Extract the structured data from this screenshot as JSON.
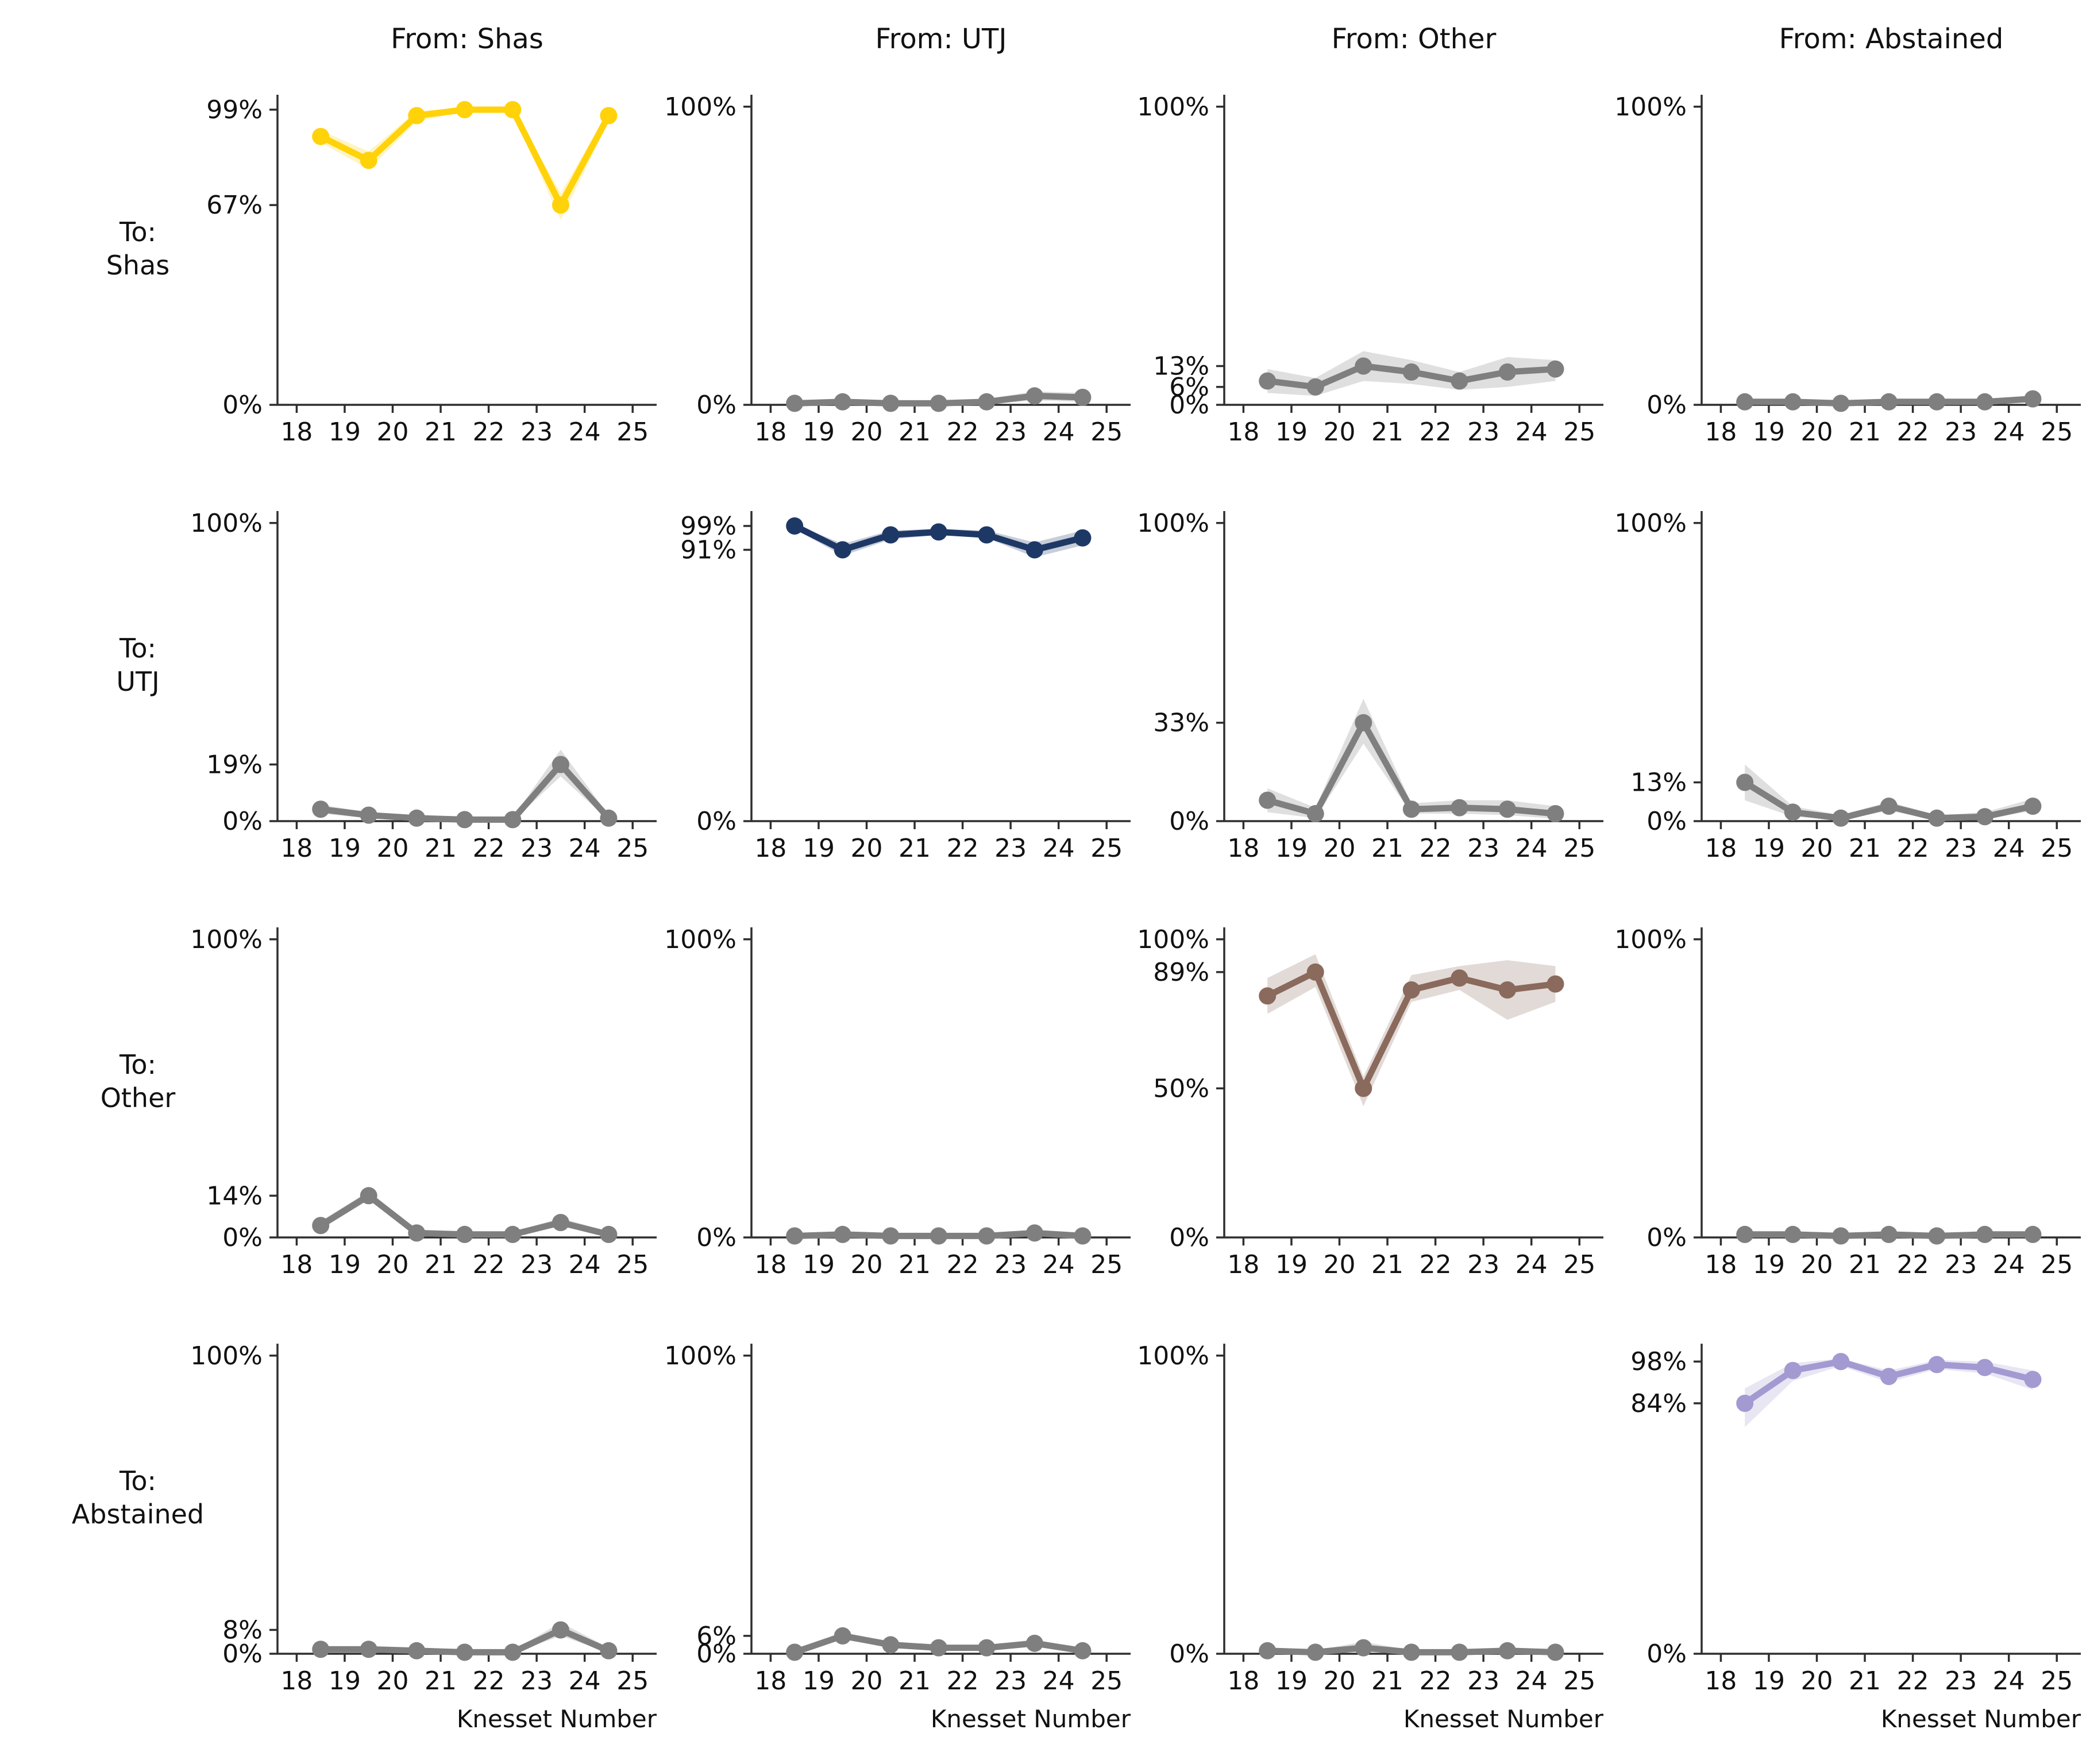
{
  "figure": {
    "xlabel": "Knesset Number",
    "x_tick_labels": [
      "18",
      "19",
      "20",
      "21",
      "22",
      "23",
      "24",
      "25"
    ],
    "column_titles": [
      "From: Shas",
      "From: UTJ",
      "From: Other",
      "From: Abstained"
    ],
    "row_labels": [
      [
        "To:",
        "Shas"
      ],
      [
        "To:",
        "UTJ"
      ],
      [
        "To:",
        "Other"
      ],
      [
        "To:",
        "Abstained"
      ]
    ],
    "xlim": [
      17.6,
      25.5
    ],
    "ylim": [
      0,
      104
    ],
    "grid": "off",
    "legend": "none"
  },
  "colors": {
    "shas": "#FFD20A",
    "utj": "#1E3866",
    "other": "#8A6A5C",
    "abstained": "#A29AD1",
    "offdiagonal": "#7F7F7F",
    "axis": "#2E2E2E",
    "text": "#111111",
    "band_opacity": 0.25
  },
  "chart_data": [
    {
      "type": "line",
      "to": "Shas",
      "from": "Shas",
      "color_key": "shas",
      "x": [
        18.5,
        19.5,
        20.5,
        21.5,
        22.5,
        23.5,
        24.5
      ],
      "values": [
        90,
        82,
        97,
        99,
        99,
        67,
        97
      ],
      "band_upper": [
        92,
        85,
        98.5,
        99.5,
        99.5,
        71,
        98.5
      ],
      "band_lower": [
        88,
        79,
        95,
        98.5,
        98,
        62,
        95
      ],
      "y_ticks": [
        {
          "v": 99,
          "label": "99%"
        },
        {
          "v": 67,
          "label": "67%"
        },
        {
          "v": 0,
          "label": "0%"
        }
      ]
    },
    {
      "type": "line",
      "to": "Shas",
      "from": "UTJ",
      "color_key": "offdiagonal",
      "x": [
        18.5,
        19.5,
        20.5,
        21.5,
        22.5,
        23.5,
        24.5
      ],
      "values": [
        0.5,
        1,
        0.5,
        0.5,
        1,
        3,
        2.5
      ],
      "band_upper": [
        1.5,
        2,
        1.5,
        1.5,
        2,
        4.5,
        4
      ],
      "band_lower": [
        0,
        0.2,
        0,
        0,
        0.2,
        1.5,
        1
      ],
      "y_ticks": [
        {
          "v": 100,
          "label": "100%"
        },
        {
          "v": 0,
          "label": "0%"
        }
      ]
    },
    {
      "type": "line",
      "to": "Shas",
      "from": "Other",
      "color_key": "offdiagonal",
      "x": [
        18.5,
        19.5,
        20.5,
        21.5,
        22.5,
        23.5,
        24.5
      ],
      "values": [
        8,
        6,
        13,
        11,
        8,
        11,
        12
      ],
      "band_upper": [
        12,
        9,
        18,
        15,
        11,
        16,
        15
      ],
      "band_lower": [
        4,
        3,
        8,
        7,
        5,
        6,
        8
      ],
      "y_ticks": [
        {
          "v": 100,
          "label": "100%"
        },
        {
          "v": 13,
          "label": "13%"
        },
        {
          "v": 6,
          "label": "6%"
        },
        {
          "v": 0,
          "label": "0%"
        }
      ]
    },
    {
      "type": "line",
      "to": "Shas",
      "from": "Abstained",
      "color_key": "offdiagonal",
      "x": [
        18.5,
        19.5,
        20.5,
        21.5,
        22.5,
        23.5,
        24.5
      ],
      "values": [
        1,
        1,
        0.5,
        1,
        1,
        1,
        2
      ],
      "band_upper": [
        2,
        2,
        1.2,
        1.8,
        1.8,
        2,
        3.2
      ],
      "band_lower": [
        0.3,
        0.3,
        0,
        0.3,
        0.3,
        0.3,
        0.9
      ],
      "y_ticks": [
        {
          "v": 100,
          "label": "100%"
        },
        {
          "v": 0,
          "label": "0%"
        }
      ]
    },
    {
      "type": "line",
      "to": "UTJ",
      "from": "Shas",
      "color_key": "offdiagonal",
      "x": [
        18.5,
        19.5,
        20.5,
        21.5,
        22.5,
        23.5,
        24.5
      ],
      "values": [
        4,
        2,
        1,
        0.5,
        0.5,
        19,
        1
      ],
      "band_upper": [
        5.5,
        3,
        1.8,
        1.2,
        1.2,
        24,
        2
      ],
      "band_lower": [
        2.5,
        1,
        0.3,
        0,
        0,
        15,
        0.3
      ],
      "y_ticks": [
        {
          "v": 100,
          "label": "100%"
        },
        {
          "v": 19,
          "label": "19%"
        },
        {
          "v": 0,
          "label": "0%"
        }
      ]
    },
    {
      "type": "line",
      "to": "UTJ",
      "from": "UTJ",
      "color_key": "utj",
      "x": [
        18.5,
        19.5,
        20.5,
        21.5,
        22.5,
        23.5,
        24.5
      ],
      "values": [
        99,
        91,
        96,
        97,
        96,
        91,
        95
      ],
      "band_upper": [
        99.6,
        93,
        97.5,
        98,
        97.5,
        93.5,
        97.5
      ],
      "band_lower": [
        98,
        89,
        94.5,
        96,
        95,
        88.5,
        92.5
      ],
      "y_ticks": [
        {
          "v": 99,
          "label": "99%"
        },
        {
          "v": 91,
          "label": "91%"
        },
        {
          "v": 0,
          "label": "0%"
        }
      ]
    },
    {
      "type": "line",
      "to": "UTJ",
      "from": "Other",
      "color_key": "offdiagonal",
      "x": [
        18.5,
        19.5,
        20.5,
        21.5,
        22.5,
        23.5,
        24.5
      ],
      "values": [
        7,
        2.5,
        33,
        4,
        4.5,
        4,
        2.5
      ],
      "band_upper": [
        11,
        4.5,
        41,
        6,
        7,
        7,
        5
      ],
      "band_lower": [
        3,
        1,
        26,
        2.5,
        2.5,
        2,
        0.8
      ],
      "y_ticks": [
        {
          "v": 100,
          "label": "100%"
        },
        {
          "v": 33,
          "label": "33%"
        },
        {
          "v": 0,
          "label": "0%"
        }
      ]
    },
    {
      "type": "line",
      "to": "UTJ",
      "from": "Abstained",
      "color_key": "offdiagonal",
      "x": [
        18.5,
        19.5,
        20.5,
        21.5,
        22.5,
        23.5,
        24.5
      ],
      "values": [
        13,
        3,
        1,
        5,
        1,
        1.5,
        5
      ],
      "band_upper": [
        19,
        5,
        2,
        6.5,
        2,
        3,
        7.5
      ],
      "band_lower": [
        7,
        1.5,
        0.3,
        3.5,
        0.3,
        0.5,
        3.5
      ],
      "y_ticks": [
        {
          "v": 100,
          "label": "100%"
        },
        {
          "v": 13,
          "label": "13%"
        },
        {
          "v": 0,
          "label": "0%"
        }
      ]
    },
    {
      "type": "line",
      "to": "Other",
      "from": "Shas",
      "color_key": "offdiagonal",
      "x": [
        18.5,
        19.5,
        20.5,
        21.5,
        22.5,
        23.5,
        24.5
      ],
      "values": [
        4,
        14,
        1.5,
        1,
        1,
        5,
        1
      ],
      "band_upper": [
        5.5,
        15.5,
        2.5,
        1.8,
        1.8,
        6.5,
        2
      ],
      "band_lower": [
        2.8,
        12.5,
        0.6,
        0.3,
        0.3,
        3.8,
        0.4
      ],
      "y_ticks": [
        {
          "v": 100,
          "label": "100%"
        },
        {
          "v": 14,
          "label": "14%"
        },
        {
          "v": 0,
          "label": "0%"
        }
      ]
    },
    {
      "type": "line",
      "to": "Other",
      "from": "UTJ",
      "color_key": "offdiagonal",
      "x": [
        18.5,
        19.5,
        20.5,
        21.5,
        22.5,
        23.5,
        24.5
      ],
      "values": [
        0.5,
        1,
        0.5,
        0.5,
        0.5,
        1.5,
        0.5
      ],
      "band_upper": [
        1.2,
        1.8,
        1.2,
        1.2,
        1.2,
        2.5,
        1.2
      ],
      "band_lower": [
        0,
        0.3,
        0,
        0,
        0,
        0.6,
        0
      ],
      "y_ticks": [
        {
          "v": 100,
          "label": "100%"
        },
        {
          "v": 0,
          "label": "0%"
        }
      ]
    },
    {
      "type": "line",
      "to": "Other",
      "from": "Other",
      "color_key": "other",
      "x": [
        18.5,
        19.5,
        20.5,
        21.5,
        22.5,
        23.5,
        24.5
      ],
      "values": [
        81,
        89,
        50,
        83,
        87,
        83,
        85
      ],
      "band_upper": [
        87,
        95,
        54,
        88,
        91,
        93,
        91
      ],
      "band_lower": [
        75,
        84,
        44,
        79,
        83,
        73,
        79
      ],
      "y_ticks": [
        {
          "v": 100,
          "label": "100%"
        },
        {
          "v": 89,
          "label": "89%"
        },
        {
          "v": 50,
          "label": "50%"
        },
        {
          "v": 0,
          "label": "0%"
        }
      ]
    },
    {
      "type": "line",
      "to": "Other",
      "from": "Abstained",
      "color_key": "offdiagonal",
      "x": [
        18.5,
        19.5,
        20.5,
        21.5,
        22.5,
        23.5,
        24.5
      ],
      "values": [
        1,
        1,
        0.5,
        1,
        0.5,
        1,
        1
      ],
      "band_upper": [
        1.8,
        1.8,
        1.1,
        1.8,
        1.1,
        1.8,
        1.8
      ],
      "band_lower": [
        0.3,
        0.3,
        0,
        0.3,
        0,
        0.3,
        0.3
      ],
      "y_ticks": [
        {
          "v": 100,
          "label": "100%"
        },
        {
          "v": 0,
          "label": "0%"
        }
      ]
    },
    {
      "type": "line",
      "to": "Abstained",
      "from": "Shas",
      "color_key": "offdiagonal",
      "x": [
        18.5,
        19.5,
        20.5,
        21.5,
        22.5,
        23.5,
        24.5
      ],
      "values": [
        1.5,
        1.5,
        1,
        0.5,
        0.5,
        8,
        1
      ],
      "band_upper": [
        2.3,
        2.3,
        1.8,
        1,
        1,
        10.5,
        2
      ],
      "band_lower": [
        0.8,
        0.8,
        0.4,
        0.1,
        0.1,
        6,
        0.4
      ],
      "y_ticks": [
        {
          "v": 100,
          "label": "100%"
        },
        {
          "v": 8,
          "label": "8%"
        },
        {
          "v": 0,
          "label": "0%"
        }
      ]
    },
    {
      "type": "line",
      "to": "Abstained",
      "from": "UTJ",
      "color_key": "offdiagonal",
      "x": [
        18.5,
        19.5,
        20.5,
        21.5,
        22.5,
        23.5,
        24.5
      ],
      "values": [
        0.5,
        6,
        3,
        2,
        2,
        3.5,
        1
      ],
      "band_upper": [
        1.2,
        7.2,
        4.2,
        2.8,
        2.8,
        4.8,
        1.8
      ],
      "band_lower": [
        0,
        4.8,
        2.2,
        1.3,
        1.3,
        2.5,
        0.4
      ],
      "y_ticks": [
        {
          "v": 100,
          "label": "100%"
        },
        {
          "v": 6,
          "label": "6%"
        },
        {
          "v": 0,
          "label": "0%"
        }
      ]
    },
    {
      "type": "line",
      "to": "Abstained",
      "from": "Other",
      "color_key": "offdiagonal",
      "x": [
        18.5,
        19.5,
        20.5,
        21.5,
        22.5,
        23.5,
        24.5
      ],
      "values": [
        1,
        0.5,
        2,
        0.5,
        0.5,
        1,
        0.5
      ],
      "band_upper": [
        1.8,
        1.2,
        4,
        1.2,
        1.2,
        2.2,
        1
      ],
      "band_lower": [
        0.4,
        0,
        0.7,
        0,
        0,
        0.3,
        0
      ],
      "y_ticks": [
        {
          "v": 100,
          "label": "100%"
        },
        {
          "v": 0,
          "label": "0%"
        }
      ]
    },
    {
      "type": "line",
      "to": "Abstained",
      "from": "Abstained",
      "color_key": "abstained",
      "x": [
        18.5,
        19.5,
        20.5,
        21.5,
        22.5,
        23.5,
        24.5
      ],
      "values": [
        84,
        95,
        98,
        93,
        97,
        96,
        92
      ],
      "band_upper": [
        89,
        97.5,
        99,
        95,
        98.5,
        98,
        95
      ],
      "band_lower": [
        76,
        91.5,
        96.5,
        91,
        95.5,
        94,
        88.5
      ],
      "y_ticks": [
        {
          "v": 98,
          "label": "98%"
        },
        {
          "v": 84,
          "label": "84%"
        },
        {
          "v": 0,
          "label": "0%"
        }
      ]
    }
  ]
}
